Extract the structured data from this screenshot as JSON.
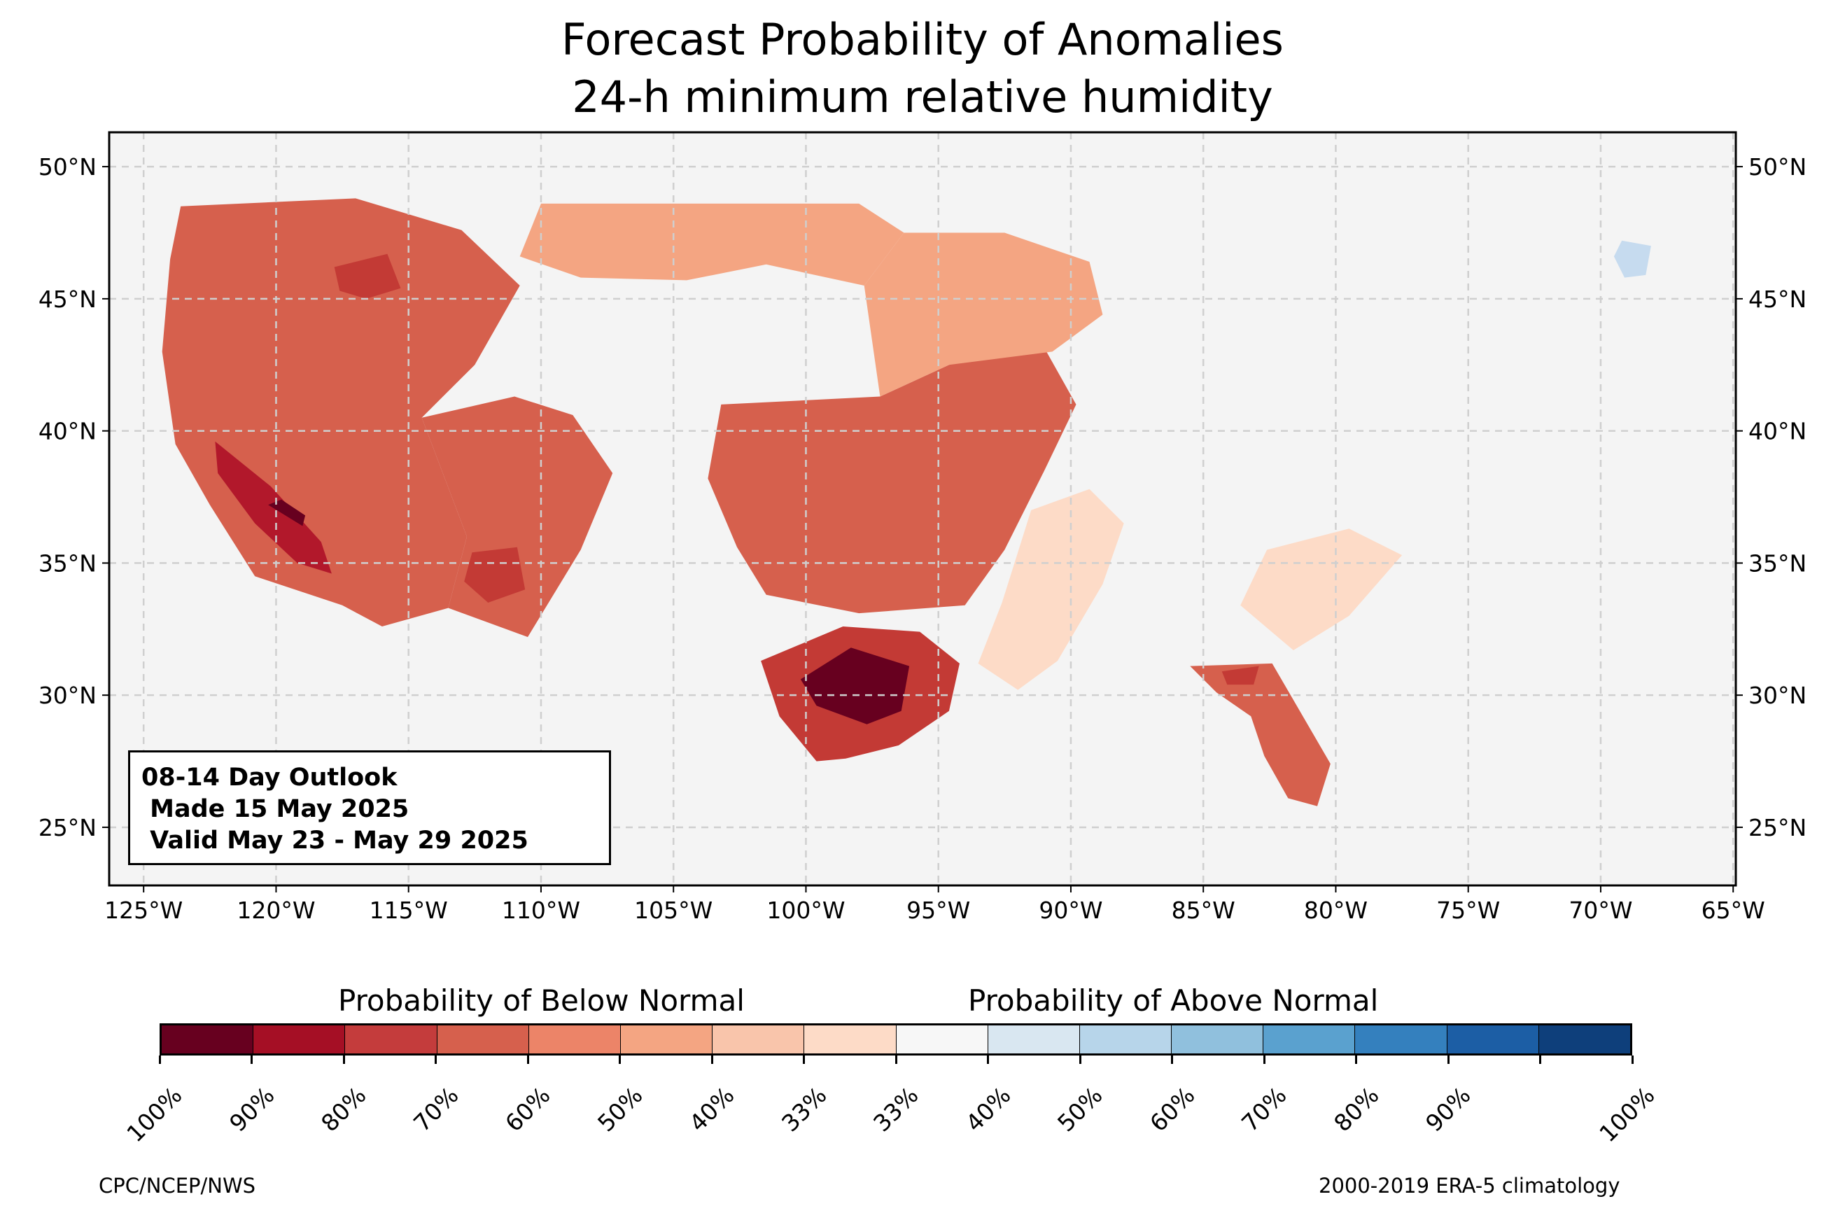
{
  "title": {
    "line1": "Forecast Probability of Anomalies",
    "line2": "24-h minimum relative humidity"
  },
  "map": {
    "lon_range": [
      -126.3,
      -64.9
    ],
    "lat_range": [
      22.8,
      51.3
    ],
    "grid": true,
    "lat_ticks": [
      {
        "value": 50,
        "label": "50°N"
      },
      {
        "value": 45,
        "label": "45°N"
      },
      {
        "value": 40,
        "label": "40°N"
      },
      {
        "value": 35,
        "label": "35°N"
      },
      {
        "value": 30,
        "label": "30°N"
      },
      {
        "value": 25,
        "label": "25°N"
      }
    ],
    "lon_ticks": [
      {
        "value": -125,
        "label": "125°W"
      },
      {
        "value": -120,
        "label": "120°W"
      },
      {
        "value": -115,
        "label": "115°W"
      },
      {
        "value": -110,
        "label": "110°W"
      },
      {
        "value": -105,
        "label": "105°W"
      },
      {
        "value": -100,
        "label": "100°W"
      },
      {
        "value": -95,
        "label": "95°W"
      },
      {
        "value": -90,
        "label": "90°W"
      },
      {
        "value": -85,
        "label": "85°W"
      },
      {
        "value": -80,
        "label": "80°W"
      },
      {
        "value": -75,
        "label": "75°W"
      },
      {
        "value": -70,
        "label": "70°W"
      },
      {
        "value": -65,
        "label": "65°W"
      }
    ],
    "colors": {
      "land": "#f4f4f4",
      "frame": "#000000",
      "gridline": "#cfcfcf"
    },
    "regions": [
      {
        "name": "west-coast-below",
        "category": "60-70% below",
        "color": "#d6604d",
        "polygon": [
          [
            -123.6,
            48.5
          ],
          [
            -117,
            48.8
          ],
          [
            -113,
            47.6
          ],
          [
            -110.8,
            45.5
          ],
          [
            -112.5,
            42.5
          ],
          [
            -114.5,
            40.5
          ],
          [
            -112.8,
            36
          ],
          [
            -113.5,
            33.3
          ],
          [
            -116,
            32.6
          ],
          [
            -117.5,
            33.4
          ],
          [
            -120.8,
            34.5
          ],
          [
            -122.5,
            37.2
          ],
          [
            -123.8,
            39.5
          ],
          [
            -124.3,
            43
          ],
          [
            -124,
            46.5
          ]
        ]
      },
      {
        "name": "california-central-valley-core",
        "category": "80-90% below",
        "color": "#b2182b",
        "polygon": [
          [
            -122.3,
            39.6
          ],
          [
            -120.2,
            37.9
          ],
          [
            -118.3,
            35.8
          ],
          [
            -117.9,
            34.6
          ],
          [
            -119.2,
            35
          ],
          [
            -120.8,
            36.5
          ],
          [
            -122.2,
            38.4
          ]
        ]
      },
      {
        "name": "california-peak",
        "category": "90-100% below",
        "color": "#67001f",
        "polygon": [
          [
            -120.3,
            37.2
          ],
          [
            -119,
            36.4
          ],
          [
            -118.9,
            36.8
          ],
          [
            -119.8,
            37.4
          ]
        ]
      },
      {
        "name": "idaho-montana-core",
        "category": "70-80% below",
        "color": "#c33a35",
        "polygon": [
          [
            -117.8,
            46.2
          ],
          [
            -115.8,
            46.7
          ],
          [
            -115.3,
            45.4
          ],
          [
            -116.6,
            45
          ],
          [
            -117.6,
            45.3
          ]
        ]
      },
      {
        "name": "northern-plains-below",
        "category": "50-60% below",
        "color": "#f4a582",
        "polygon": [
          [
            -110,
            48.6
          ],
          [
            -98,
            48.6
          ],
          [
            -96.3,
            47.5
          ],
          [
            -97.8,
            45.5
          ],
          [
            -101.5,
            46.3
          ],
          [
            -104.5,
            45.7
          ],
          [
            -108.5,
            45.8
          ],
          [
            -110.8,
            46.6
          ]
        ]
      },
      {
        "name": "great-basin-southwest",
        "category": "60-70% below",
        "color": "#d6604d",
        "polygon": [
          [
            -114.5,
            40.5
          ],
          [
            -111,
            41.3
          ],
          [
            -108.8,
            40.6
          ],
          [
            -107.3,
            38.4
          ],
          [
            -108.5,
            35.5
          ],
          [
            -110.5,
            32.2
          ],
          [
            -113.5,
            33.3
          ],
          [
            -112.8,
            36
          ]
        ]
      },
      {
        "name": "arizona-core",
        "category": "70-80% below",
        "color": "#c33a35",
        "polygon": [
          [
            -112.6,
            35.4
          ],
          [
            -110.9,
            35.6
          ],
          [
            -110.6,
            34
          ],
          [
            -112,
            33.5
          ],
          [
            -112.9,
            34.3
          ]
        ]
      },
      {
        "name": "central-plains-below",
        "category": "60-70% below",
        "color": "#d6604d",
        "polygon": [
          [
            -103.2,
            41
          ],
          [
            -97.2,
            41.3
          ],
          [
            -94.6,
            42.5
          ],
          [
            -91.2,
            43.5
          ],
          [
            -89.8,
            41
          ],
          [
            -91,
            38.5
          ],
          [
            -92.5,
            35.5
          ],
          [
            -94,
            33.4
          ],
          [
            -98,
            33.1
          ],
          [
            -101.5,
            33.8
          ],
          [
            -102.6,
            35.6
          ],
          [
            -103.7,
            38.2
          ]
        ]
      },
      {
        "name": "upper-midwest-below",
        "category": "50-60% below",
        "color": "#f4a582",
        "polygon": [
          [
            -96.3,
            47.5
          ],
          [
            -92.5,
            47.5
          ],
          [
            -89.3,
            46.4
          ],
          [
            -88.8,
            44.4
          ],
          [
            -90.7,
            43
          ],
          [
            -94.6,
            42.5
          ],
          [
            -97.2,
            41.3
          ],
          [
            -97.8,
            45.5
          ]
        ]
      },
      {
        "name": "texas-below",
        "category": "70-80% below",
        "color": "#c33a35",
        "polygon": [
          [
            -101.7,
            31.3
          ],
          [
            -98.6,
            32.6
          ],
          [
            -95.7,
            32.4
          ],
          [
            -94.2,
            31.2
          ],
          [
            -94.6,
            29.4
          ],
          [
            -96.5,
            28.1
          ],
          [
            -98.5,
            27.6
          ],
          [
            -99.6,
            27.5
          ],
          [
            -101,
            29.2
          ]
        ]
      },
      {
        "name": "texas-peak",
        "category": "90-100% below",
        "color": "#67001f",
        "polygon": [
          [
            -100.2,
            30.6
          ],
          [
            -98.3,
            31.8
          ],
          [
            -96.1,
            31.1
          ],
          [
            -96.4,
            29.4
          ],
          [
            -97.7,
            28.9
          ],
          [
            -99.6,
            29.6
          ]
        ]
      },
      {
        "name": "mississippi-valley-below",
        "category": "40-50% below",
        "color": "#fddbc7",
        "polygon": [
          [
            -91.5,
            37
          ],
          [
            -89.3,
            37.8
          ],
          [
            -88,
            36.5
          ],
          [
            -88.8,
            34.2
          ],
          [
            -90.5,
            31.3
          ],
          [
            -92,
            30.2
          ],
          [
            -93.5,
            31.2
          ],
          [
            -92.6,
            33.5
          ]
        ]
      },
      {
        "name": "florida-georgia-below",
        "category": "60-70% below",
        "color": "#d6604d",
        "polygon": [
          [
            -85.5,
            31.1
          ],
          [
            -82.4,
            31.2
          ],
          [
            -81.3,
            29.3
          ],
          [
            -80.2,
            27.4
          ],
          [
            -80.7,
            25.8
          ],
          [
            -81.8,
            26.1
          ],
          [
            -82.7,
            27.7
          ],
          [
            -83.2,
            29.2
          ],
          [
            -84.5,
            30.1
          ]
        ]
      },
      {
        "name": "florida-core",
        "category": "70-80% below",
        "color": "#c33a35",
        "polygon": [
          [
            -84.3,
            30.9
          ],
          [
            -82.9,
            31.1
          ],
          [
            -83.1,
            30.4
          ],
          [
            -84.1,
            30.4
          ]
        ]
      },
      {
        "name": "southeast-coast-below",
        "category": "40-50% below",
        "color": "#fddbc7",
        "polygon": [
          [
            -82.6,
            35.5
          ],
          [
            -79.5,
            36.3
          ],
          [
            -77.5,
            35.3
          ],
          [
            -79.5,
            33
          ],
          [
            -81.6,
            31.7
          ],
          [
            -83.6,
            33.4
          ]
        ]
      },
      {
        "name": "maine-above",
        "category": "40-50% above",
        "color": "#c6dbef",
        "polygon": [
          [
            -69.2,
            47.2
          ],
          [
            -68.1,
            47
          ],
          [
            -68.3,
            45.9
          ],
          [
            -69.1,
            45.8
          ],
          [
            -69.5,
            46.6
          ]
        ]
      }
    ]
  },
  "outlook": {
    "line1": "08-14 Day Outlook",
    "line2": " Made 15 May 2025",
    "line3": " Valid May 23 - May 29 2025"
  },
  "colorbar": {
    "below_label": "Probability of Below Normal",
    "above_label": "Probability of Above Normal",
    "colors": [
      "#67001f",
      "#a50f25",
      "#c43c3c",
      "#d6604d",
      "#ec8468",
      "#f4a582",
      "#f9c5ab",
      "#fddbc7",
      "#f7f7f7",
      "#d9e7f1",
      "#b7d5ea",
      "#90c0dd",
      "#5aa1cf",
      "#3480be",
      "#1c5ea5",
      "#0e3f7b"
    ],
    "labels": [
      "100%",
      "90%",
      "80%",
      "70%",
      "60%",
      "50%",
      "40%",
      "33%",
      "33%",
      "40%",
      "50%",
      "60%",
      "70%",
      "80%",
      "90%",
      "100%"
    ]
  },
  "footer": {
    "left": "CPC/NCEP/NWS",
    "right": "2000-2019 ERA-5 climatology"
  }
}
